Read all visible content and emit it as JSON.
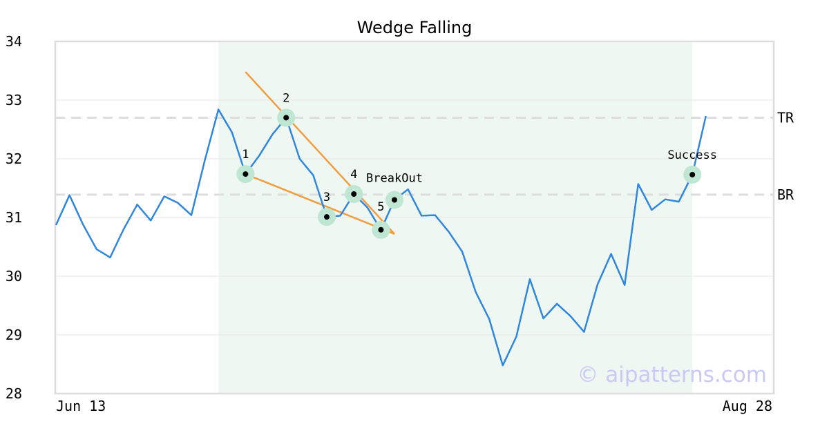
{
  "colors": {
    "price_line": "#2e86de",
    "wedge_line": "#f39c3c",
    "point_halo": "#bfe6d2",
    "point_dot": "#000000",
    "pattern_zone": "#eef7f2",
    "gridline": "#e6e6e6",
    "frame": "#dddddd",
    "level_line": "#dddddd",
    "watermark": "#c9c9f2"
  },
  "chart_data": {
    "type": "line",
    "title": "Wedge Falling",
    "xlabel": "",
    "ylabel": "",
    "ylim": [
      28,
      34
    ],
    "y_ticks": [
      "28",
      "29",
      "30",
      "31",
      "32",
      "33",
      "34"
    ],
    "x_tick_labels": [
      "Jun 13",
      "Aug 28"
    ],
    "x_index_range": [
      0,
      53
    ],
    "grid": true,
    "series": [
      {
        "values": [
          30.87,
          31.38,
          30.88,
          30.46,
          30.32,
          30.8,
          31.22,
          30.95,
          31.36,
          31.25,
          31.04,
          31.98,
          32.84,
          32.45,
          31.74,
          32.05,
          32.42,
          32.7,
          32.0,
          31.72,
          31.01,
          31.03,
          31.4,
          31.17,
          30.79,
          31.3,
          31.48,
          31.03,
          31.04,
          30.76,
          30.42,
          29.73,
          29.27,
          28.48,
          28.97,
          29.95,
          29.28,
          29.53,
          29.32,
          29.05,
          29.86,
          30.38,
          29.85,
          31.57,
          31.13,
          31.31,
          31.27,
          31.73,
          32.73
        ]
      }
    ],
    "pattern_zone": {
      "x_start": 12,
      "x_end": 47
    },
    "wedge_lines": [
      {
        "from": {
          "x": 14,
          "y": 33.48
        },
        "to": {
          "x": 25,
          "y": 30.72
        }
      },
      {
        "from": {
          "x": 14,
          "y": 31.74
        },
        "to": {
          "x": 25,
          "y": 30.72
        }
      }
    ],
    "levels": [
      {
        "label": "TR",
        "value": 32.7
      },
      {
        "label": "BR",
        "value": 31.39
      }
    ],
    "marked_points": [
      {
        "label": "1",
        "x": 14,
        "y": 31.74
      },
      {
        "label": "2",
        "x": 17,
        "y": 32.7
      },
      {
        "label": "3",
        "x": 20,
        "y": 31.01
      },
      {
        "label": "4",
        "x": 22,
        "y": 31.4
      },
      {
        "label": "5",
        "x": 24,
        "y": 30.79
      },
      {
        "label": "BreakOut",
        "x": 25,
        "y": 31.3
      },
      {
        "label": "Success",
        "x": 47,
        "y": 31.73
      }
    ],
    "watermark": "© aipatterns.com"
  }
}
